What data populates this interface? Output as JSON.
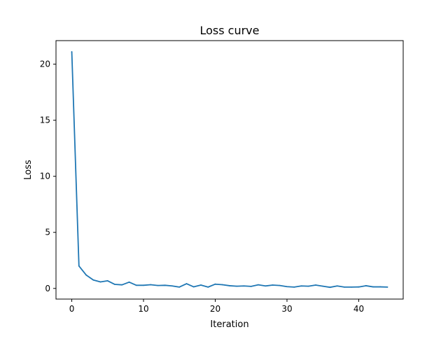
{
  "chart_data": {
    "type": "line",
    "title": "Loss curve",
    "xlabel": "Iteration",
    "ylabel": "Loss",
    "xlim": [
      -2.2,
      46.2
    ],
    "ylim": [
      -0.95,
      22.1
    ],
    "xticks": [
      0,
      10,
      20,
      30,
      40
    ],
    "yticks": [
      0,
      5,
      10,
      15,
      20
    ],
    "grid": false,
    "series": [
      {
        "color": "#1f77b4",
        "x": [
          0,
          1,
          2,
          3,
          4,
          5,
          6,
          7,
          8,
          9,
          10,
          11,
          12,
          13,
          14,
          15,
          16,
          17,
          18,
          19,
          20,
          21,
          22,
          23,
          24,
          25,
          26,
          27,
          28,
          29,
          30,
          31,
          32,
          33,
          34,
          35,
          36,
          37,
          38,
          39,
          40,
          41,
          42,
          43,
          44
        ],
        "y": [
          21.1,
          2.0,
          1.2,
          0.75,
          0.58,
          0.68,
          0.36,
          0.32,
          0.56,
          0.28,
          0.28,
          0.33,
          0.26,
          0.28,
          0.22,
          0.12,
          0.42,
          0.14,
          0.3,
          0.12,
          0.38,
          0.33,
          0.24,
          0.2,
          0.22,
          0.18,
          0.32,
          0.22,
          0.3,
          0.26,
          0.16,
          0.12,
          0.22,
          0.2,
          0.3,
          0.2,
          0.1,
          0.22,
          0.12,
          0.12,
          0.13,
          0.24,
          0.14,
          0.14,
          0.12
        ]
      }
    ]
  }
}
